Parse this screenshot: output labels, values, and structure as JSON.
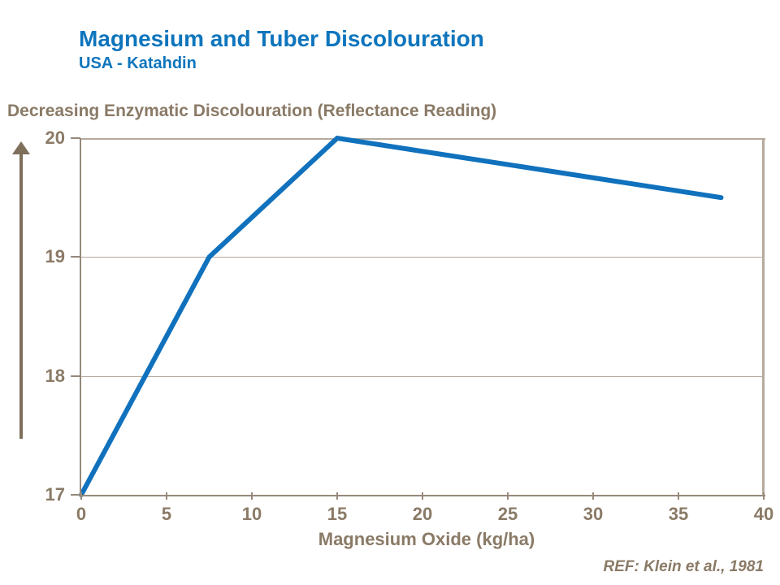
{
  "header": {
    "title": "Magnesium and Tuber Discolouration",
    "subtitle": "USA - Katahdin"
  },
  "footer": {
    "reference": "REF: Klein et al., 1981"
  },
  "colors": {
    "accent_blue": "#0E75BD",
    "line_blue": "#1071BD",
    "brown_text": "#8A7A66",
    "axis_line": "#96897A",
    "gridline": "#B5AA9D",
    "arrow_brown": "#7E6F5B"
  },
  "chart_data": {
    "type": "line",
    "title": "Magnesium and Tuber Discolouration",
    "subtitle": "USA - Katahdin",
    "series": [
      {
        "name": "Reflectance Reading",
        "x": [
          0,
          7.5,
          15,
          37.5
        ],
        "y": [
          17,
          19,
          20,
          19.5
        ]
      }
    ],
    "xlabel": "Magnesium Oxide (kg/ha)",
    "ylabel": "Decreasing Enzymatic Discolouration (Reflectance Reading)",
    "xlim": [
      0,
      40
    ],
    "ylim": [
      17,
      20
    ],
    "x_ticks": [
      0,
      5,
      10,
      15,
      20,
      25,
      30,
      35,
      40
    ],
    "y_ticks": [
      17,
      18,
      19,
      20
    ],
    "grid": "horizontal",
    "legend_position": "none"
  }
}
